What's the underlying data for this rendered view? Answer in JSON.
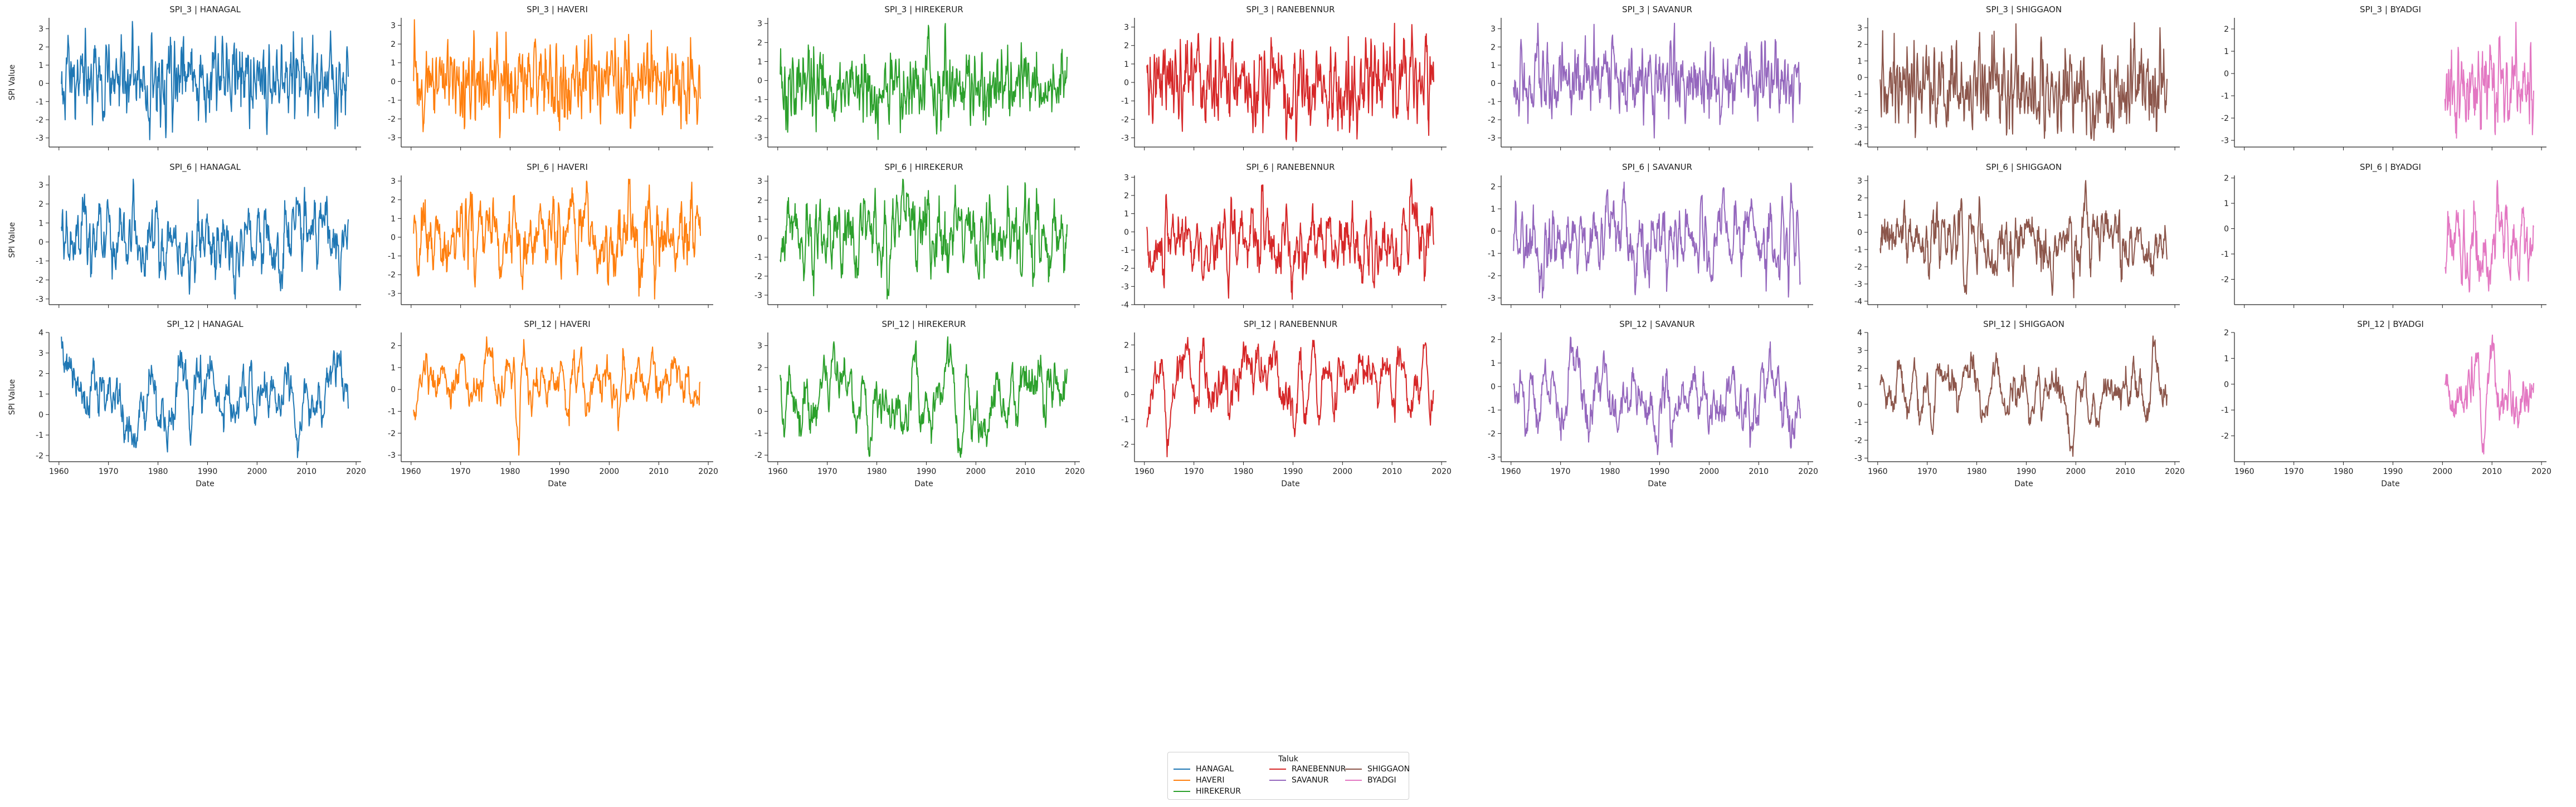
{
  "chart_data": {
    "type": "line",
    "layout": "facet grid, rows = SPI index, columns = Taluk, shared x axis",
    "xlabel": "Date",
    "ylabel": "SPI Value",
    "x_ticks": [
      1960,
      1970,
      1980,
      1990,
      2000,
      2010,
      2020
    ],
    "x_range": [
      1958,
      2021
    ],
    "rows": [
      "SPI_3",
      "SPI_6",
      "SPI_12"
    ],
    "columns": [
      "HANAGAL",
      "HAVERI",
      "HIREKERUR",
      "RANEBENNUR",
      "SAVANUR",
      "SHIGGAON",
      "BYADGI"
    ],
    "colors": {
      "HANAGAL": "#1f77b4",
      "HAVERI": "#ff7f0e",
      "HIREKERUR": "#2ca02c",
      "RANEBENNUR": "#d62728",
      "SAVANUR": "#9467bd",
      "SHIGGAON": "#8c564b",
      "BYADGI": "#e377c2"
    },
    "legend": {
      "title": "Taluk",
      "placement": "bottom-center",
      "entries": [
        "HANAGAL",
        "HAVERI",
        "HIREKERUR",
        "RANEBENNUR",
        "SAVANUR",
        "SHIGGAON",
        "BYADGI"
      ]
    },
    "panels": [
      {
        "title": "SPI_3 | HANAGAL",
        "index": "SPI_3",
        "taluk": "HANAGAL",
        "x_start": 1960.5,
        "x_end": 2018.5,
        "ylim": [
          -3.5,
          3.6
        ],
        "yticks": [
          -3,
          -2,
          -1,
          0,
          1,
          2,
          3
        ],
        "ymin": -3.1,
        "ymax": 3.4
      },
      {
        "title": "SPI_3 | HAVERI",
        "index": "SPI_3",
        "taluk": "HAVERI",
        "x_start": 1960.5,
        "x_end": 2018.5,
        "ylim": [
          -3.5,
          3.4
        ],
        "yticks": [
          -3,
          -2,
          -1,
          0,
          1,
          2,
          3
        ],
        "ymin": -3.0,
        "ymax": 3.3
      },
      {
        "title": "SPI_3 | HIREKERUR",
        "index": "SPI_3",
        "taluk": "HIREKERUR",
        "x_start": 1960.5,
        "x_end": 2018.5,
        "ylim": [
          -3.5,
          3.3
        ],
        "yticks": [
          -3,
          -2,
          -1,
          0,
          1,
          2,
          3
        ],
        "ymin": -3.1,
        "ymax": 3.0
      },
      {
        "title": "SPI_3 | RANEBENNUR",
        "index": "SPI_3",
        "taluk": "RANEBENNUR",
        "x_start": 1960.5,
        "x_end": 2018.5,
        "ylim": [
          -3.5,
          3.5
        ],
        "yticks": [
          -3,
          -2,
          -1,
          0,
          1,
          2,
          3
        ],
        "ymin": -3.2,
        "ymax": 3.2
      },
      {
        "title": "SPI_3 | SAVANUR",
        "index": "SPI_3",
        "taluk": "SAVANUR",
        "x_start": 1960.5,
        "x_end": 2018.5,
        "ylim": [
          -3.5,
          3.6
        ],
        "yticks": [
          -3,
          -2,
          -1,
          0,
          1,
          2,
          3
        ],
        "ymin": -3.0,
        "ymax": 3.3
      },
      {
        "title": "SPI_3 | SHIGGAON",
        "index": "SPI_3",
        "taluk": "SHIGGAON",
        "x_start": 1960.5,
        "x_end": 2018.5,
        "ylim": [
          -4.2,
          3.6
        ],
        "yticks": [
          -4,
          -3,
          -2,
          -1,
          0,
          1,
          2,
          3
        ],
        "ymin": -3.8,
        "ymax": 3.3
      },
      {
        "title": "SPI_3 | BYADGI",
        "index": "SPI_3",
        "taluk": "BYADGI",
        "x_start": 2000.5,
        "x_end": 2018.5,
        "ylim": [
          -3.3,
          2.5
        ],
        "yticks": [
          -3,
          -2,
          -1,
          0,
          1,
          2
        ],
        "ymin": -2.9,
        "ymax": 2.3
      },
      {
        "title": "SPI_6 | HANAGAL",
        "index": "SPI_6",
        "taluk": "HANAGAL",
        "x_start": 1960.5,
        "x_end": 2018.5,
        "ylim": [
          -3.3,
          3.5
        ],
        "yticks": [
          -3,
          -2,
          -1,
          0,
          1,
          2,
          3
        ],
        "ymin": -3.0,
        "ymax": 3.3
      },
      {
        "title": "SPI_6 | HAVERI",
        "index": "SPI_6",
        "taluk": "HAVERI",
        "x_start": 1960.5,
        "x_end": 2018.5,
        "ylim": [
          -3.6,
          3.3
        ],
        "yticks": [
          -3,
          -2,
          -1,
          0,
          1,
          2,
          3
        ],
        "ymin": -3.3,
        "ymax": 3.1
      },
      {
        "title": "SPI_6 | HIREKERUR",
        "index": "SPI_6",
        "taluk": "HIREKERUR",
        "x_start": 1960.5,
        "x_end": 2018.5,
        "ylim": [
          -3.5,
          3.3
        ],
        "yticks": [
          -3,
          -2,
          -1,
          0,
          1,
          2,
          3
        ],
        "ymin": -3.2,
        "ymax": 3.1
      },
      {
        "title": "SPI_6 | RANEBENNUR",
        "index": "SPI_6",
        "taluk": "RANEBENNUR",
        "x_start": 1960.5,
        "x_end": 2018.5,
        "ylim": [
          -4.0,
          3.1
        ],
        "yticks": [
          -4,
          -3,
          -2,
          -1,
          0,
          1,
          2,
          3
        ],
        "ymin": -3.7,
        "ymax": 2.9
      },
      {
        "title": "SPI_6 | SAVANUR",
        "index": "SPI_6",
        "taluk": "SAVANUR",
        "x_start": 1960.5,
        "x_end": 2018.5,
        "ylim": [
          -3.3,
          2.5
        ],
        "yticks": [
          -3,
          -2,
          -1,
          0,
          1,
          2
        ],
        "ymin": -3.0,
        "ymax": 2.2
      },
      {
        "title": "SPI_6 | SHIGGAON",
        "index": "SPI_6",
        "taluk": "SHIGGAON",
        "x_start": 1960.5,
        "x_end": 2018.5,
        "ylim": [
          -4.2,
          3.3
        ],
        "yticks": [
          -4,
          -3,
          -2,
          -1,
          0,
          1,
          2,
          3
        ],
        "ymin": -3.8,
        "ymax": 3.0
      },
      {
        "title": "SPI_6 | BYADGI",
        "index": "SPI_6",
        "taluk": "BYADGI",
        "x_start": 2000.5,
        "x_end": 2018.5,
        "ylim": [
          -3.0,
          2.1
        ],
        "yticks": [
          -2,
          -1,
          0,
          1,
          2
        ],
        "ymin": -2.5,
        "ymax": 1.9
      },
      {
        "title": "SPI_12 | HANAGAL",
        "index": "SPI_12",
        "taluk": "HANAGAL",
        "x_start": 1960.5,
        "x_end": 2018.5,
        "ylim": [
          -2.3,
          4.0
        ],
        "yticks": [
          -2,
          -1,
          0,
          1,
          2,
          3,
          4
        ],
        "ymin": -2.1,
        "ymax": 3.8
      },
      {
        "title": "SPI_12 | HAVERI",
        "index": "SPI_12",
        "taluk": "HAVERI",
        "x_start": 1960.5,
        "x_end": 2018.5,
        "ylim": [
          -3.3,
          2.6
        ],
        "yticks": [
          -3,
          -2,
          -1,
          0,
          1,
          2
        ],
        "ymin": -3.0,
        "ymax": 2.4
      },
      {
        "title": "SPI_12 | HIREKERUR",
        "index": "SPI_12",
        "taluk": "HIREKERUR",
        "x_start": 1960.5,
        "x_end": 2018.5,
        "ylim": [
          -2.3,
          3.6
        ],
        "yticks": [
          -2,
          -1,
          0,
          1,
          2,
          3
        ],
        "ymin": -2.1,
        "ymax": 3.4
      },
      {
        "title": "SPI_12 | RANEBENNUR",
        "index": "SPI_12",
        "taluk": "RANEBENNUR",
        "x_start": 1960.5,
        "x_end": 2018.5,
        "ylim": [
          -2.7,
          2.5
        ],
        "yticks": [
          -2,
          -1,
          0,
          1,
          2
        ],
        "ymin": -2.5,
        "ymax": 2.3
      },
      {
        "title": "SPI_12 | SAVANUR",
        "index": "SPI_12",
        "taluk": "SAVANUR",
        "x_start": 1960.5,
        "x_end": 2018.5,
        "ylim": [
          -3.2,
          2.3
        ],
        "yticks": [
          -3,
          -2,
          -1,
          0,
          1,
          2
        ],
        "ymin": -2.9,
        "ymax": 2.1
      },
      {
        "title": "SPI_12 | SHIGGAON",
        "index": "SPI_12",
        "taluk": "SHIGGAON",
        "x_start": 1960.5,
        "x_end": 2018.5,
        "ylim": [
          -3.2,
          4.0
        ],
        "yticks": [
          -3,
          -2,
          -1,
          0,
          1,
          2,
          3,
          4
        ],
        "ymin": -2.9,
        "ymax": 3.8
      },
      {
        "title": "SPI_12 | BYADGI",
        "index": "SPI_12",
        "taluk": "BYADGI",
        "x_start": 2000.5,
        "x_end": 2018.5,
        "ylim": [
          -3.0,
          2.0
        ],
        "yticks": [
          -2,
          -1,
          0,
          1,
          2
        ],
        "ymin": -2.7,
        "ymax": 1.9
      }
    ]
  }
}
